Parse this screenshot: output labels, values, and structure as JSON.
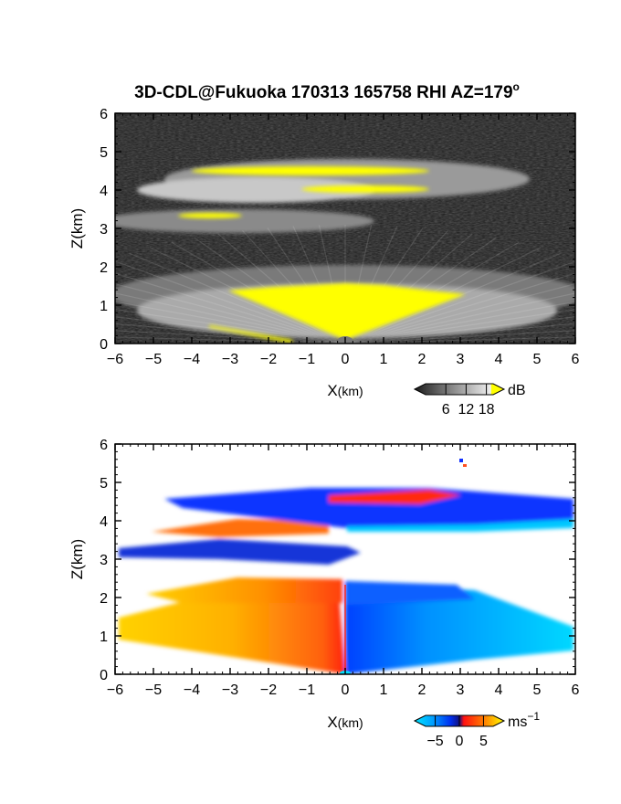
{
  "title_main": "3D-CDL@Fukuoka 170313 165758 RHI AZ=179",
  "title_deg": "o",
  "chart_data": [
    {
      "type": "heatmap",
      "field": "reflectivity",
      "xlabel_main": "X",
      "xlabel_unit": "(km)",
      "ylabel": "Z(km)",
      "xlim": [
        -6,
        6
      ],
      "ylim": [
        0,
        6
      ],
      "xticks": [
        "-6",
        "-5",
        "-4",
        "-3",
        "-2",
        "-1",
        "0",
        "1",
        "2",
        "3",
        "4",
        "5",
        "6"
      ],
      "yticks": [
        "0",
        "1",
        "2",
        "3",
        "4",
        "5",
        "6"
      ],
      "colorbar": {
        "unit": "dB",
        "ticks": [
          "6",
          "12",
          "18"
        ],
        "tick_values": [
          6,
          12,
          18
        ],
        "range": [
          0,
          20
        ],
        "palette": [
          "#1a1a1a",
          "#555555",
          "#8a8a8a",
          "#c0c0c0",
          "#eeeeee",
          "#ffff00"
        ]
      },
      "layers": [
        {
          "name": "background",
          "z": [
            0,
            6
          ],
          "level": 0.12
        },
        {
          "name": "upper-cloud",
          "z": [
            3.9,
            4.9
          ],
          "x": [
            -4.5,
            3.0
          ],
          "level": 0.65
        },
        {
          "name": "mid-cloud",
          "z": [
            2.9,
            3.6
          ],
          "x": [
            -6.0,
            1.0
          ],
          "level": 0.55
        },
        {
          "name": "low-cloud",
          "z": [
            0.0,
            2.0
          ],
          "x": [
            -6.0,
            6.0
          ],
          "level": 0.6
        }
      ],
      "saturated_color": "#ffff00"
    },
    {
      "type": "heatmap",
      "field": "doppler velocity",
      "xlabel_main": "X",
      "xlabel_unit": "(km)",
      "ylabel": "Z(km)",
      "xlim": [
        -6,
        6
      ],
      "ylim": [
        0,
        6
      ],
      "xticks": [
        "-6",
        "-5",
        "-4",
        "-3",
        "-2",
        "-1",
        "0",
        "1",
        "2",
        "3",
        "4",
        "5",
        "6"
      ],
      "yticks": [
        "0",
        "1",
        "2",
        "3",
        "4",
        "5",
        "6"
      ],
      "colorbar": {
        "unit": "ms",
        "unit_exp": "−1",
        "ticks": [
          "−5",
          "0",
          "5"
        ],
        "tick_values": [
          -5,
          0,
          5
        ],
        "range": [
          -7,
          7
        ],
        "palette": [
          "#00e5ff",
          "#00a0ff",
          "#0040ff",
          "#1010a0",
          "#ff1010",
          "#ff8000",
          "#ffff00"
        ]
      },
      "regions": [
        {
          "name": "upper-band-negative",
          "z": [
            3.8,
            4.9
          ],
          "x": [
            -4.7,
            6.0
          ],
          "velocity": -4
        },
        {
          "name": "upper-band-positive",
          "z": [
            4.35,
            4.85
          ],
          "x": [
            -0.5,
            3.2
          ],
          "velocity": 4
        },
        {
          "name": "upper-left-positive",
          "z": [
            3.5,
            4.3
          ],
          "x": [
            -5.3,
            -0.5
          ],
          "velocity": 4
        },
        {
          "name": "mid-band-negative",
          "z": [
            2.7,
            3.5
          ],
          "x": [
            -6.0,
            0.5
          ],
          "velocity": -4
        },
        {
          "name": "low-left-positive",
          "z": [
            0.0,
            2.6
          ],
          "x": [
            -6.0,
            0.0
          ],
          "velocity": 4
        },
        {
          "name": "low-right-negative",
          "z": [
            0.0,
            2.4
          ],
          "x": [
            0.0,
            6.0
          ],
          "velocity": -4
        }
      ]
    }
  ]
}
